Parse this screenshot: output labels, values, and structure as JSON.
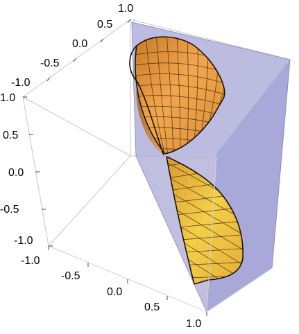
{
  "plot": {
    "type": "3d-surface",
    "ticks_left_vertical": [
      "1.0",
      "0.5",
      "0.0",
      "-0.5",
      "-1.0"
    ],
    "ticks_top_depth": [
      "1.0",
      "0.5",
      "0.0",
      "-0.5",
      "-1.0"
    ],
    "ticks_bottom": [
      "-1.0",
      "-0.5",
      "0.0",
      "0.5",
      "1.0"
    ],
    "surface_colors": {
      "upper_dark": "#d88a2e",
      "upper_light": "#f6b15a",
      "lower_dark": "#e0a83a",
      "lower_light": "#f4d04a"
    },
    "plane_color": "#8f8fd6"
  }
}
